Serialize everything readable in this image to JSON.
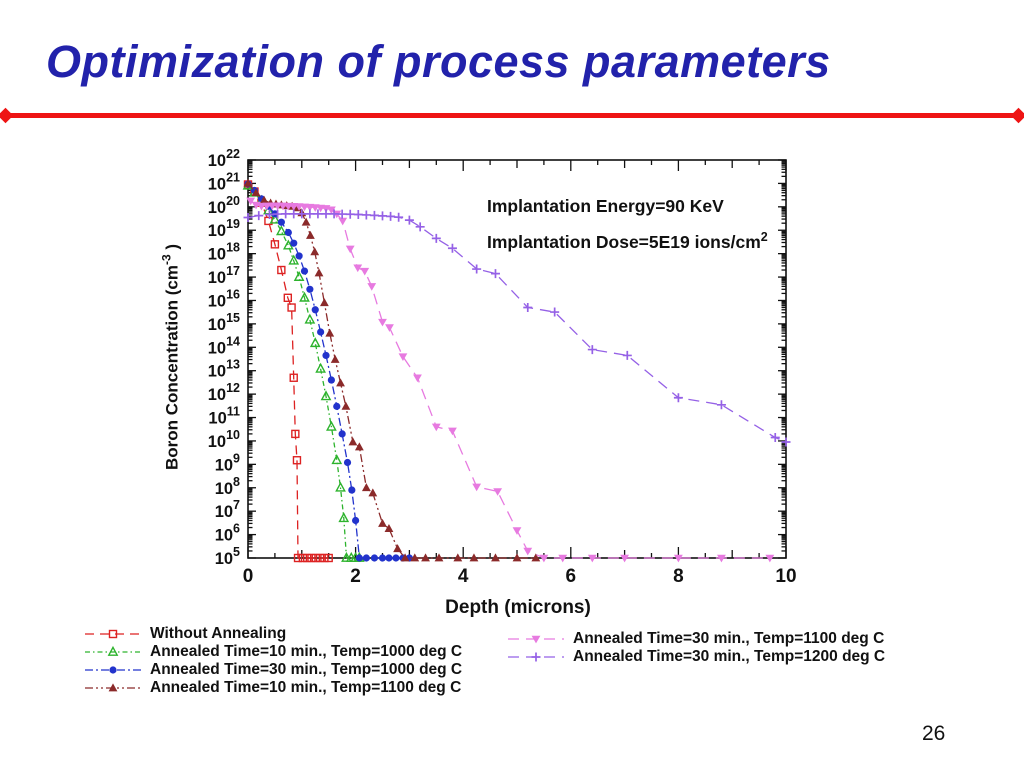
{
  "slide": {
    "title": "Optimization of process parameters",
    "page_number": "26",
    "colors": {
      "title": "#2222ab",
      "rule": "#ee1414",
      "text": "#111111"
    }
  },
  "chart_data": {
    "type": "line",
    "title": "",
    "xlabel": "Depth (microns)",
    "ylabel": {
      "text": "Boron Concentration (cm",
      "sup": "-3",
      "close": " )"
    },
    "annotations": [
      {
        "text": "Implantation Energy=90 KeV",
        "sup": ""
      },
      {
        "text": "Implantation Dose=5E19 ions/cm",
        "sup": "2"
      }
    ],
    "x_axis": {
      "min": 0,
      "max": 10,
      "tick_labels": [
        "0",
        "2",
        "4",
        "6",
        "8",
        "10"
      ],
      "minor_step": 0.5
    },
    "y_axis": {
      "scale": "log",
      "min_exp": 5,
      "max_exp": 22,
      "tick_exponents": [
        5,
        6,
        7,
        8,
        9,
        10,
        11,
        12,
        13,
        14,
        15,
        16,
        17,
        18,
        19,
        20,
        21,
        22
      ]
    },
    "legend_position": "below",
    "series": [
      {
        "name": "Without Annealing",
        "color": "#dd2222",
        "marker": "square-open",
        "line_style": "dashed",
        "legend_column": 0,
        "points": [
          [
            0,
            9e+20
          ],
          [
            0.12,
            4.5e+20
          ],
          [
            0.25,
            1.5e+20
          ],
          [
            0.38,
            2.5e+19
          ],
          [
            0.5,
            2.5e+18
          ],
          [
            0.62,
            2e+17
          ],
          [
            0.74,
            1.3e+16
          ],
          [
            0.81,
            5000000000000000.0
          ],
          [
            0.85,
            5000000000000.0
          ],
          [
            0.88,
            20000000000.0
          ],
          [
            0.91,
            1500000000.0
          ],
          [
            0.93,
            100000.0
          ],
          [
            1.02,
            100000.0
          ],
          [
            1.1,
            100000.0
          ],
          [
            1.18,
            100000.0
          ],
          [
            1.26,
            100000.0
          ],
          [
            1.34,
            100000.0
          ],
          [
            1.42,
            100000.0
          ],
          [
            1.5,
            100000.0
          ]
        ]
      },
      {
        "name": "Annealed Time=10 min., Temp=1000 deg C",
        "color": "#2db32d",
        "marker": "triangle-open",
        "line_style": "dashdotfine",
        "legend_column": 0,
        "points": [
          [
            0,
            8e+20
          ],
          [
            0.12,
            4e+20
          ],
          [
            0.25,
            1.8e+20
          ],
          [
            0.38,
            7e+19
          ],
          [
            0.5,
            2.8e+19
          ],
          [
            0.62,
            9e+18
          ],
          [
            0.75,
            2.2e+18
          ],
          [
            0.85,
            5e+17
          ],
          [
            0.95,
            1e+17
          ],
          [
            1.05,
            1.3e+16
          ],
          [
            1.15,
            1500000000000000.0
          ],
          [
            1.25,
            150000000000000.0
          ],
          [
            1.35,
            12000000000000.0
          ],
          [
            1.45,
            800000000000.0
          ],
          [
            1.55,
            40000000000.0
          ],
          [
            1.65,
            1500000000.0
          ],
          [
            1.72,
            100000000.0
          ],
          [
            1.78,
            5000000.0
          ],
          [
            1.83,
            100000.0
          ],
          [
            1.92,
            100000.0
          ],
          [
            2.0,
            100000.0
          ],
          [
            2.07,
            100000.0
          ]
        ]
      },
      {
        "name": "Annealed Time=30 min., Temp=1000 deg C",
        "color": "#2233cc",
        "marker": "circle",
        "line_style": "dashdot",
        "legend_column": 0,
        "points": [
          [
            0,
            9.5e+20
          ],
          [
            0.12,
            5e+20
          ],
          [
            0.25,
            2.2e+20
          ],
          [
            0.38,
            1.05e+20
          ],
          [
            0.5,
            5e+19
          ],
          [
            0.62,
            2.2e+19
          ],
          [
            0.75,
            8e+18
          ],
          [
            0.85,
            2.8e+18
          ],
          [
            0.95,
            8e+17
          ],
          [
            1.05,
            1.8e+17
          ],
          [
            1.15,
            3e+16
          ],
          [
            1.25,
            4000000000000000.0
          ],
          [
            1.35,
            450000000000000.0
          ],
          [
            1.45,
            45000000000000.0
          ],
          [
            1.55,
            4000000000000.0
          ],
          [
            1.65,
            300000000000.0
          ],
          [
            1.75,
            20000000000.0
          ],
          [
            1.85,
            1200000000.0
          ],
          [
            1.93,
            80000000.0
          ],
          [
            2.0,
            4000000.0
          ],
          [
            2.07,
            100000.0
          ],
          [
            2.2,
            100000.0
          ],
          [
            2.35,
            100000.0
          ],
          [
            2.5,
            100000.0
          ],
          [
            2.62,
            100000.0
          ],
          [
            2.75,
            100000.0
          ],
          [
            2.88,
            100000.0
          ],
          [
            3.0,
            100000.0
          ]
        ]
      },
      {
        "name": "Annealed Time=10 min., Temp=1100 deg C",
        "color": "#8b2a2a",
        "marker": "triangle-up",
        "line_style": "dashdotdot",
        "legend_column": 0,
        "points": [
          [
            0,
            1e+21
          ],
          [
            0.15,
            4e+20
          ],
          [
            0.3,
            1.9e+20
          ],
          [
            0.42,
            1.45e+20
          ],
          [
            0.52,
            1.3e+20
          ],
          [
            0.62,
            1.2e+20
          ],
          [
            0.72,
            1.12e+20
          ],
          [
            0.82,
            1.05e+20
          ],
          [
            0.92,
            9e+19
          ],
          [
            1.0,
            5.5e+19
          ],
          [
            1.08,
            2.2e+19
          ],
          [
            1.16,
            6e+18
          ],
          [
            1.24,
            1.2e+18
          ],
          [
            1.32,
            1.5e+17
          ],
          [
            1.42,
            8000000000000000.0
          ],
          [
            1.52,
            400000000000000.0
          ],
          [
            1.62,
            30000000000000.0
          ],
          [
            1.72,
            3000000000000.0
          ],
          [
            1.82,
            300000000000.0
          ],
          [
            1.95,
            9000000000.0
          ],
          [
            2.07,
            5500000000.0
          ],
          [
            2.2,
            100000000.0
          ],
          [
            2.32,
            60000000.0
          ],
          [
            2.5,
            3000000.0
          ],
          [
            2.62,
            1800000.0
          ],
          [
            2.78,
            250000.0
          ],
          [
            2.92,
            100000.0
          ],
          [
            3.1,
            100000.0
          ],
          [
            3.3,
            100000.0
          ],
          [
            3.55,
            100000.0
          ],
          [
            3.9,
            100000.0
          ],
          [
            4.2,
            100000.0
          ],
          [
            4.6,
            100000.0
          ],
          [
            5.0,
            100000.0
          ],
          [
            5.35,
            100000.0
          ]
        ]
      },
      {
        "name": "Annealed Time=30 min., Temp=1100 deg C",
        "color": "#e77ae0",
        "marker": "triangle-down",
        "line_style": "longdash",
        "legend_column": 1,
        "points": [
          [
            0.05,
            1.8e+20
          ],
          [
            0.15,
            1.2e+20
          ],
          [
            0.25,
            1.08e+20
          ],
          [
            0.35,
            1.1e+20
          ],
          [
            0.45,
            1.12e+20
          ],
          [
            0.55,
            1.12e+20
          ],
          [
            0.65,
            1.1e+20
          ],
          [
            0.75,
            1.08e+20
          ],
          [
            0.85,
            1.06e+20
          ],
          [
            0.95,
            1.04e+20
          ],
          [
            1.05,
            1e+20
          ],
          [
            1.15,
            9.7e+19
          ],
          [
            1.25,
            9.4e+19
          ],
          [
            1.35,
            9e+19
          ],
          [
            1.45,
            8.6e+19
          ],
          [
            1.55,
            7.5e+19
          ],
          [
            1.65,
            5e+19
          ],
          [
            1.76,
            2.5e+19
          ],
          [
            1.9,
            1.6e+18
          ],
          [
            2.04,
            2.5e+17
          ],
          [
            2.17,
            1.8e+17
          ],
          [
            2.3,
            4e+16
          ],
          [
            2.5,
            1200000000000000.0
          ],
          [
            2.63,
            700000000000000.0
          ],
          [
            2.88,
            40000000000000.0
          ],
          [
            3.15,
            5000000000000.0
          ],
          [
            3.5,
            40000000000.0
          ],
          [
            3.8,
            27000000000.0
          ],
          [
            4.25,
            110000000.0
          ],
          [
            4.64,
            70000000.0
          ],
          [
            5.0,
            1500000.0
          ],
          [
            5.2,
            200000.0
          ],
          [
            5.5,
            100000.0
          ],
          [
            5.85,
            100000.0
          ],
          [
            6.4,
            100000.0
          ],
          [
            7.0,
            100000.0
          ],
          [
            8.0,
            100000.0
          ],
          [
            8.8,
            100000.0
          ],
          [
            9.7,
            100000.0
          ]
        ]
      },
      {
        "name": "Annealed Time=30 min., Temp=1200 deg C",
        "color": "#9561e6",
        "marker": "plus",
        "line_style": "longdash",
        "legend_column": 1,
        "points": [
          [
            0,
            3.5e+19
          ],
          [
            0.2,
            4.2e+19
          ],
          [
            0.4,
            4.7e+19
          ],
          [
            0.55,
            4.9e+19
          ],
          [
            0.7,
            5e+19
          ],
          [
            0.85,
            5e+19
          ],
          [
            1.0,
            5e+19
          ],
          [
            1.15,
            5e+19
          ],
          [
            1.3,
            5e+19
          ],
          [
            1.45,
            5e+19
          ],
          [
            1.6,
            5e+19
          ],
          [
            1.75,
            4.9e+19
          ],
          [
            1.9,
            4.8e+19
          ],
          [
            2.05,
            4.7e+19
          ],
          [
            2.2,
            4.5e+19
          ],
          [
            2.35,
            4.3e+19
          ],
          [
            2.5,
            4.1e+19
          ],
          [
            2.65,
            3.9e+19
          ],
          [
            2.8,
            3.6e+19
          ],
          [
            3.0,
            2.7e+19
          ],
          [
            3.2,
            1.4e+19
          ],
          [
            3.5,
            4.5e+18
          ],
          [
            3.8,
            1.7e+18
          ],
          [
            4.25,
            2.2e+17
          ],
          [
            4.6,
            1.4e+17
          ],
          [
            5.2,
            5000000000000000.0
          ],
          [
            5.7,
            3200000000000000.0
          ],
          [
            6.4,
            80000000000000.0
          ],
          [
            7.05,
            45000000000000.0
          ],
          [
            8.0,
            700000000000.0
          ],
          [
            8.8,
            350000000000.0
          ],
          [
            9.8,
            14000000000.0
          ],
          [
            10,
            9000000000.0
          ]
        ]
      }
    ]
  }
}
